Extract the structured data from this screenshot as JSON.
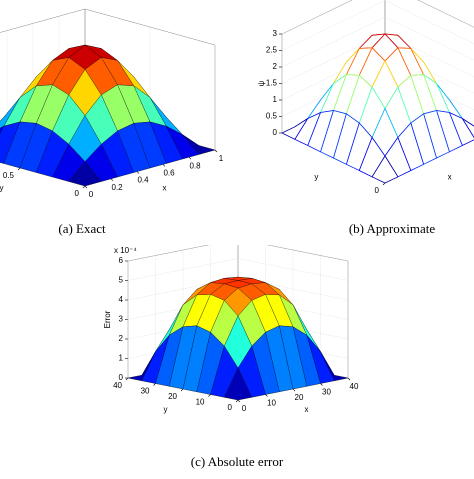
{
  "chart_data": [
    {
      "type": "surface",
      "title": "(a) Exact",
      "xlabel": "x",
      "ylabel": "y",
      "x": [
        0,
        0.125,
        0.25,
        0.375,
        0.5,
        0.625,
        0.75,
        0.875,
        1
      ],
      "y": [
        0,
        0.125,
        0.25,
        0.375,
        0.5,
        0.625,
        0.75,
        0.875,
        1
      ],
      "z": [
        [
          0,
          0,
          0,
          0,
          0,
          0,
          0,
          0,
          0
        ],
        [
          0,
          0.44,
          0.81,
          1.06,
          1.15,
          1.06,
          0.81,
          0.44,
          0
        ],
        [
          0,
          0.81,
          1.5,
          1.96,
          2.12,
          1.96,
          1.5,
          0.81,
          0
        ],
        [
          0,
          1.06,
          1.96,
          2.56,
          2.77,
          2.56,
          1.96,
          1.06,
          0
        ],
        [
          0,
          1.15,
          2.12,
          2.77,
          3,
          2.77,
          2.12,
          1.15,
          0
        ],
        [
          0,
          1.06,
          1.96,
          2.56,
          2.77,
          2.56,
          1.96,
          1.06,
          0
        ],
        [
          0,
          0.81,
          1.5,
          1.96,
          2.12,
          1.96,
          1.5,
          0.81,
          0
        ],
        [
          0,
          0.44,
          0.81,
          1.06,
          1.15,
          1.06,
          0.81,
          0.44,
          0
        ],
        [
          0,
          0,
          0,
          0,
          0,
          0,
          0,
          0,
          0
        ]
      ],
      "xlim": [
        0,
        1
      ],
      "ylim": [
        0,
        1
      ],
      "zlim": [
        0,
        3
      ],
      "xticks": [
        0,
        0.2,
        0.4,
        0.6,
        0.8,
        1
      ],
      "yticks": [
        0,
        0.5
      ],
      "style": "filled"
    },
    {
      "type": "surface",
      "title": "(b) Approximate",
      "xlabel": "x",
      "ylabel": "y",
      "zlabel": "ψ",
      "x": [
        0,
        0.125,
        0.25,
        0.375,
        0.5,
        0.625,
        0.75,
        0.875,
        1
      ],
      "y": [
        0,
        0.125,
        0.25,
        0.375,
        0.5,
        0.625,
        0.75,
        0.875,
        1
      ],
      "z": [
        [
          0,
          0,
          0,
          0,
          0,
          0,
          0,
          0,
          0
        ],
        [
          0,
          0.44,
          0.81,
          1.06,
          1.15,
          1.06,
          0.81,
          0.44,
          0
        ],
        [
          0,
          0.81,
          1.5,
          1.96,
          2.12,
          1.96,
          1.5,
          0.81,
          0
        ],
        [
          0,
          1.06,
          1.96,
          2.56,
          2.77,
          2.56,
          1.96,
          1.06,
          0
        ],
        [
          0,
          1.15,
          2.12,
          2.77,
          3,
          2.77,
          2.12,
          1.15,
          0
        ],
        [
          0,
          1.06,
          1.96,
          2.56,
          2.77,
          2.56,
          1.96,
          1.06,
          0
        ],
        [
          0,
          0.81,
          1.5,
          1.96,
          2.12,
          1.96,
          1.5,
          0.81,
          0
        ],
        [
          0,
          0.44,
          0.81,
          1.06,
          1.15,
          1.06,
          0.81,
          0.44,
          0
        ],
        [
          0,
          0,
          0,
          0,
          0,
          0,
          0,
          0,
          0
        ]
      ],
      "xlim": [
        0,
        1
      ],
      "ylim": [
        0,
        1
      ],
      "zlim": [
        0,
        3
      ],
      "yticks": [
        0
      ],
      "zticks": [
        0,
        0.5,
        1,
        1.5,
        2,
        2.5,
        3
      ],
      "style": "mesh"
    },
    {
      "type": "surface",
      "title": "(c) Absolute error",
      "xlabel": "x",
      "ylabel": "y",
      "zlabel": "Error",
      "z_multiplier": "x 10⁻⁴",
      "x": [
        0,
        5,
        10,
        15,
        20,
        25,
        30,
        35,
        40
      ],
      "y": [
        0,
        5,
        10,
        15,
        20,
        25,
        30,
        35,
        40
      ],
      "z": [
        [
          0,
          0,
          0,
          0,
          0,
          0,
          0,
          0,
          0
        ],
        [
          0,
          1.36,
          2.34,
          2.91,
          3.1,
          2.91,
          2.34,
          1.36,
          0
        ],
        [
          0,
          2.34,
          3.75,
          4.4,
          4.57,
          4.4,
          3.75,
          2.34,
          0
        ],
        [
          0,
          2.91,
          4.4,
          4.89,
          4.97,
          4.89,
          4.4,
          2.91,
          0
        ],
        [
          0,
          3.1,
          4.57,
          4.97,
          5,
          4.97,
          4.57,
          3.1,
          0
        ],
        [
          0,
          2.91,
          4.4,
          4.89,
          4.97,
          4.89,
          4.4,
          2.91,
          0
        ],
        [
          0,
          2.34,
          3.75,
          4.4,
          4.57,
          4.4,
          3.75,
          2.34,
          0
        ],
        [
          0,
          1.36,
          2.34,
          2.91,
          3.1,
          2.91,
          2.34,
          1.36,
          0
        ],
        [
          0,
          0,
          0,
          0,
          0,
          0,
          0,
          0,
          0
        ]
      ],
      "xlim": [
        0,
        40
      ],
      "ylim": [
        0,
        40
      ],
      "zlim": [
        0,
        6
      ],
      "xticks": [
        0,
        10,
        20,
        30,
        40
      ],
      "yticks": [
        0,
        10,
        20,
        30,
        40
      ],
      "zticks": [
        0,
        1,
        2,
        3,
        4,
        5,
        6
      ],
      "style": "filled"
    }
  ]
}
